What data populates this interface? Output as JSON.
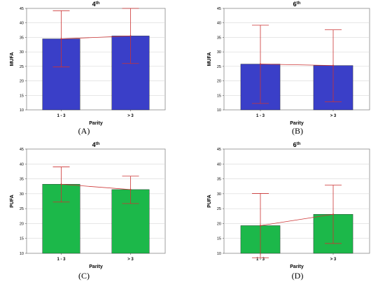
{
  "figure": {
    "panels": [
      "(A)",
      "(B)",
      "(C)",
      "(D)"
    ]
  },
  "colors": {
    "mufa_bar": "#3a3fc8",
    "pufa_bar": "#1cb84a",
    "error_line": "#cc3333",
    "frame": "#888888",
    "grid": "#d8d8d8"
  },
  "chart_data": [
    {
      "type": "bar",
      "title": "4",
      "title_sup": "th",
      "xlabel": "Parity",
      "ylabel": "MUFA",
      "categories": [
        "1 - 3",
        "> 3"
      ],
      "values": [
        34.5,
        35.5
      ],
      "error_low": [
        24.8,
        26
      ],
      "error_high": [
        44.2,
        45
      ],
      "ylim": [
        10,
        45
      ],
      "yticks": [
        "10",
        "15",
        "20",
        "25",
        "30",
        "35",
        "40",
        "45"
      ],
      "grid": true
    },
    {
      "type": "bar",
      "title": "6",
      "title_sup": "th",
      "xlabel": "Parity",
      "ylabel": "MUFA",
      "categories": [
        "1 - 3",
        "> 3"
      ],
      "values": [
        25.8,
        25.3
      ],
      "error_low": [
        12.2,
        12.8
      ],
      "error_high": [
        39.2,
        37.6
      ],
      "ylim": [
        10,
        45
      ],
      "yticks": [
        "10",
        "15",
        "20",
        "25",
        "30",
        "35",
        "40",
        "45"
      ],
      "grid": true
    },
    {
      "type": "bar",
      "title": "4",
      "title_sup": "th",
      "xlabel": "Parity",
      "ylabel": "PUFA",
      "categories": [
        "1 - 3",
        "> 3"
      ],
      "values": [
        33.2,
        31.4
      ],
      "error_low": [
        27.2,
        26.7
      ],
      "error_high": [
        39,
        35.9
      ],
      "ylim": [
        10,
        45
      ],
      "yticks": [
        "10",
        "15",
        "20",
        "25",
        "30",
        "35",
        "40",
        "45"
      ],
      "grid": true
    },
    {
      "type": "bar",
      "title": "6",
      "title_sup": "th",
      "xlabel": "Parity",
      "ylabel": "PUFA",
      "categories": [
        "1 - 3",
        "> 3"
      ],
      "values": [
        19.3,
        23.1
      ],
      "error_low": [
        8.5,
        13.3
      ],
      "error_high": [
        30.1,
        32.9
      ],
      "ylim": [
        10,
        45
      ],
      "yticks": [
        "10",
        "15",
        "20",
        "25",
        "30",
        "35",
        "40",
        "45"
      ],
      "grid": true
    }
  ]
}
